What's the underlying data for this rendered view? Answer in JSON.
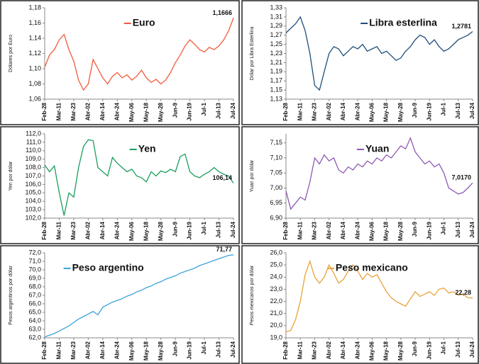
{
  "chart_data": [
    {
      "type": "line",
      "ylabel": "Dólares por Euro",
      "categories": [
        "Feb-28",
        null,
        null,
        "Mar-11",
        null,
        null,
        "Mar-23",
        null,
        null,
        "Abr-02",
        null,
        null,
        "Abr-14",
        null,
        null,
        "Abr-24",
        null,
        null,
        "May-06",
        null,
        null,
        "May-18",
        null,
        null,
        "May-28",
        null,
        null,
        "Jun-9",
        null,
        null,
        "Jun-19",
        null,
        null,
        "Jul-1",
        null,
        null,
        "Jul-13",
        null,
        null,
        "Jul-24"
      ],
      "series": [
        {
          "name": "Euro",
          "color": "#f05a3c",
          "values": [
            1.102,
            1.118,
            1.125,
            1.138,
            1.145,
            1.125,
            1.11,
            1.085,
            1.072,
            1.08,
            1.112,
            1.1,
            1.088,
            1.08,
            1.09,
            1.095,
            1.088,
            1.092,
            1.085,
            1.09,
            1.098,
            1.088,
            1.082,
            1.086,
            1.08,
            1.085,
            1.095,
            1.108,
            1.118,
            1.13,
            1.138,
            1.132,
            1.125,
            1.122,
            1.128,
            1.125,
            1.13,
            1.138,
            1.15,
            1.1666
          ],
          "value_labels": [
            null,
            null,
            null,
            null,
            null,
            null,
            null,
            null,
            null,
            null,
            null,
            null,
            null,
            null,
            null,
            null,
            null,
            null,
            null,
            null,
            null,
            null,
            null,
            null,
            null,
            null,
            null,
            null,
            null,
            null,
            null,
            null,
            null,
            null,
            null,
            null,
            null,
            null,
            null,
            "1,1666"
          ]
        }
      ],
      "ylim": [
        1.06,
        1.18
      ],
      "yticks": [
        {
          "value": 1.06,
          "label": "1,06"
        },
        {
          "value": 1.08,
          "label": "1,08"
        },
        {
          "value": 1.1,
          "label": "1,10"
        },
        {
          "value": 1.12,
          "label": "1,12"
        },
        {
          "value": 1.14,
          "label": "1,14"
        },
        {
          "value": 1.16,
          "label": "1,16"
        },
        {
          "value": 1.18,
          "label": "1,18"
        }
      ]
    },
    {
      "type": "line",
      "ylabel": "Dólar por Libra Esterlina",
      "categories": [
        "Feb-28",
        null,
        null,
        "Mar-11",
        null,
        null,
        "Mar-23",
        null,
        null,
        "Abr-02",
        null,
        null,
        "Abr-14",
        null,
        null,
        "Abr-24",
        null,
        null,
        "May-06",
        null,
        null,
        "May-18",
        null,
        null,
        "May-28",
        null,
        null,
        "Jun-9",
        null,
        null,
        "Jun-19",
        null,
        null,
        "Jul-1",
        null,
        null,
        "Jul-13",
        null,
        null,
        "Jul-24"
      ],
      "series": [
        {
          "name": "Libra esterlina",
          "color": "#1f4e79",
          "values": [
            1.275,
            1.285,
            1.295,
            1.31,
            1.28,
            1.23,
            1.16,
            1.15,
            1.19,
            1.23,
            1.245,
            1.24,
            1.225,
            1.235,
            1.245,
            1.24,
            1.25,
            1.235,
            1.24,
            1.245,
            1.23,
            1.235,
            1.225,
            1.215,
            1.22,
            1.235,
            1.245,
            1.26,
            1.27,
            1.265,
            1.25,
            1.26,
            1.245,
            1.235,
            1.24,
            1.25,
            1.26,
            1.265,
            1.27,
            1.2781
          ],
          "value_labels": [
            null,
            null,
            null,
            null,
            null,
            null,
            null,
            null,
            null,
            null,
            null,
            null,
            null,
            null,
            null,
            null,
            null,
            null,
            null,
            null,
            null,
            null,
            null,
            null,
            null,
            null,
            null,
            null,
            null,
            null,
            null,
            null,
            null,
            null,
            null,
            null,
            null,
            null,
            null,
            "1,2781"
          ]
        }
      ],
      "ylim": [
        1.13,
        1.33
      ],
      "yticks": [
        {
          "value": 1.13,
          "label": "1,13"
        },
        {
          "value": 1.15,
          "label": "1,15"
        },
        {
          "value": 1.17,
          "label": "1,17"
        },
        {
          "value": 1.19,
          "label": "1,19"
        },
        {
          "value": 1.21,
          "label": "1,21"
        },
        {
          "value": 1.23,
          "label": "1,23"
        },
        {
          "value": 1.25,
          "label": "1,25"
        },
        {
          "value": 1.27,
          "label": "1,27"
        },
        {
          "value": 1.29,
          "label": "1,29"
        },
        {
          "value": 1.31,
          "label": "1,31"
        },
        {
          "value": 1.33,
          "label": "1,33"
        }
      ]
    },
    {
      "type": "line",
      "ylabel": "Yen por dólar",
      "categories": [
        "Feb-28",
        null,
        null,
        "Mar-11",
        null,
        null,
        "Mar-23",
        null,
        null,
        "Abr-02",
        null,
        null,
        "Abr-14",
        null,
        null,
        "Abr-24",
        null,
        null,
        "May-06",
        null,
        null,
        "May-18",
        null,
        null,
        "May-28",
        null,
        null,
        "Jun-9",
        null,
        null,
        "Jun-19",
        null,
        null,
        "Jul-1",
        null,
        null,
        "Jul-13",
        null,
        null,
        "Jul-24"
      ],
      "series": [
        {
          "name": "Yen",
          "color": "#1a9e5c",
          "values": [
            108.3,
            107.5,
            108.2,
            105,
            102.3,
            105,
            104.5,
            108,
            110.5,
            111.3,
            111.2,
            108,
            107.5,
            107,
            109.2,
            108.5,
            108,
            107.5,
            107.8,
            107,
            106.8,
            106.3,
            107.5,
            107,
            107.6,
            107.4,
            107.8,
            107.5,
            109.3,
            109.6,
            107.5,
            107,
            106.8,
            107.2,
            107.5,
            108,
            107.5,
            107.2,
            107,
            106.14
          ],
          "value_labels": [
            null,
            null,
            null,
            null,
            null,
            null,
            null,
            null,
            null,
            null,
            null,
            null,
            null,
            null,
            null,
            null,
            null,
            null,
            null,
            null,
            null,
            null,
            null,
            null,
            null,
            null,
            null,
            null,
            null,
            null,
            null,
            null,
            null,
            null,
            null,
            null,
            null,
            null,
            null,
            "106,14"
          ]
        }
      ],
      "ylim": [
        102,
        112
      ],
      "yticks": [
        {
          "value": 102,
          "label": "102,0"
        },
        {
          "value": 103,
          "label": "103,0"
        },
        {
          "value": 104,
          "label": "104,0"
        },
        {
          "value": 105,
          "label": "105,0"
        },
        {
          "value": 106,
          "label": "106,0"
        },
        {
          "value": 107,
          "label": "107,0"
        },
        {
          "value": 108,
          "label": "108,0"
        },
        {
          "value": 109,
          "label": "109,0"
        },
        {
          "value": 110,
          "label": "110,0"
        },
        {
          "value": 111,
          "label": "111,0"
        },
        {
          "value": 112,
          "label": "112,0"
        }
      ]
    },
    {
      "type": "line",
      "ylabel": "Yuan por dólar",
      "categories": [
        "Feb-28",
        null,
        null,
        "Mar-11",
        null,
        null,
        "Mar-23",
        null,
        null,
        "Abr-02",
        null,
        null,
        "Abr-14",
        null,
        null,
        "Abr-24",
        null,
        null,
        "May-06",
        null,
        null,
        "May-18",
        null,
        null,
        "May-28",
        null,
        null,
        "Jun-9",
        null,
        null,
        "Jun-19",
        null,
        null,
        "Jul-1",
        null,
        null,
        "Jul-13",
        null,
        null,
        "Jul-24"
      ],
      "series": [
        {
          "name": "Yuan",
          "color": "#8e5ab5",
          "values": [
            6.99,
            6.93,
            6.95,
            6.97,
            6.96,
            7.02,
            7.1,
            7.08,
            7.11,
            7.09,
            7.1,
            7.06,
            7.05,
            7.07,
            7.06,
            7.08,
            7.07,
            7.09,
            7.08,
            7.1,
            7.09,
            7.11,
            7.1,
            7.12,
            7.14,
            7.13,
            7.166,
            7.12,
            7.1,
            7.08,
            7.09,
            7.07,
            7.08,
            7.05,
            7.0,
            6.99,
            6.98,
            6.985,
            7.0,
            7.017
          ],
          "value_labels": [
            null,
            null,
            null,
            null,
            null,
            null,
            null,
            null,
            null,
            null,
            null,
            null,
            null,
            null,
            null,
            null,
            null,
            null,
            null,
            null,
            null,
            null,
            null,
            null,
            null,
            null,
            null,
            null,
            null,
            null,
            null,
            null,
            null,
            null,
            null,
            null,
            null,
            null,
            null,
            "7,0170"
          ]
        }
      ],
      "ylim": [
        6.9,
        7.18
      ],
      "yticks": [
        {
          "value": 6.9,
          "label": "6,90"
        },
        {
          "value": 6.95,
          "label": "6,95"
        },
        {
          "value": 7.0,
          "label": "7,00"
        },
        {
          "value": 7.05,
          "label": "7,05"
        },
        {
          "value": 7.1,
          "label": "7,10"
        },
        {
          "value": 7.15,
          "label": "7,15"
        }
      ]
    },
    {
      "type": "line",
      "ylabel": "Pesos argentinos por dólar",
      "categories": [
        "Feb-28",
        null,
        null,
        "Mar-11",
        null,
        null,
        "Mar-23",
        null,
        null,
        "Abr-02",
        null,
        null,
        "Abr-14",
        null,
        null,
        "Abr-24",
        null,
        null,
        "May-06",
        null,
        null,
        "May-18",
        null,
        null,
        "May-28",
        null,
        null,
        "Jun-9",
        null,
        null,
        "Jun-19",
        null,
        null,
        "Jul-1",
        null,
        null,
        "Jul-13",
        null,
        null,
        "Jul-24"
      ],
      "series": [
        {
          "name": "Peso argentino",
          "color": "#3ba3d9",
          "values": [
            62.1,
            62.3,
            62.5,
            62.8,
            63.1,
            63.4,
            63.8,
            64.2,
            64.5,
            64.8,
            65.1,
            64.7,
            65.6,
            65.9,
            66.2,
            66.4,
            66.6,
            66.9,
            67.1,
            67.4,
            67.6,
            67.9,
            68.1,
            68.4,
            68.6,
            68.9,
            69.1,
            69.3,
            69.6,
            69.8,
            70.0,
            70.2,
            70.5,
            70.7,
            70.9,
            71.1,
            71.3,
            71.5,
            71.7,
            71.77
          ],
          "value_labels": [
            null,
            null,
            null,
            null,
            null,
            null,
            null,
            null,
            null,
            null,
            null,
            null,
            null,
            null,
            null,
            null,
            null,
            null,
            null,
            null,
            null,
            null,
            null,
            null,
            null,
            null,
            null,
            null,
            null,
            null,
            null,
            null,
            null,
            null,
            null,
            null,
            null,
            null,
            null,
            "71,77"
          ]
        }
      ],
      "ylim": [
        62,
        72
      ],
      "yticks": [
        {
          "value": 62,
          "label": "62,0"
        },
        {
          "value": 63,
          "label": "63,0"
        },
        {
          "value": 64,
          "label": "64,0"
        },
        {
          "value": 65,
          "label": "65,0"
        },
        {
          "value": 66,
          "label": "66,0"
        },
        {
          "value": 67,
          "label": "67,0"
        },
        {
          "value": 68,
          "label": "68,0"
        },
        {
          "value": 69,
          "label": "69,0"
        },
        {
          "value": 70,
          "label": "70,0"
        },
        {
          "value": 71,
          "label": "71,0"
        },
        {
          "value": 72,
          "label": "72,0"
        }
      ]
    },
    {
      "type": "line",
      "ylabel": "Pesos mexicanos por dólar",
      "categories": [
        "Feb-28",
        null,
        null,
        "Mar-11",
        null,
        null,
        "Mar-23",
        null,
        null,
        "Abr-02",
        null,
        null,
        "Abr-14",
        null,
        null,
        "Abr-24",
        null,
        null,
        "May-06",
        null,
        null,
        "May-18",
        null,
        null,
        "May-28",
        null,
        null,
        "Jun-9",
        null,
        null,
        "Jun-19",
        null,
        null,
        "Jul-1",
        null,
        null,
        "Jul-13",
        null,
        null,
        "Jul-24"
      ],
      "series": [
        {
          "name": "Peso mexicano",
          "color": "#e8a33a",
          "values": [
            19.5,
            19.6,
            20.5,
            22,
            24.2,
            25.3,
            24,
            23.5,
            24,
            25,
            24.3,
            23.5,
            23.8,
            24.5,
            25,
            24.5,
            23.8,
            24.3,
            24,
            24.2,
            23.5,
            22.8,
            22.3,
            22,
            21.8,
            21.6,
            22.2,
            22.8,
            22.4,
            22.6,
            22.8,
            22.5,
            23,
            23.1,
            22.7,
            22.8,
            22.5,
            22.6,
            22.3,
            22.28
          ],
          "value_labels": [
            null,
            null,
            null,
            null,
            null,
            null,
            null,
            null,
            null,
            null,
            null,
            null,
            null,
            null,
            null,
            null,
            null,
            null,
            null,
            null,
            null,
            null,
            null,
            null,
            null,
            null,
            null,
            null,
            null,
            null,
            null,
            null,
            null,
            null,
            null,
            null,
            null,
            null,
            null,
            "22,28"
          ]
        }
      ],
      "ylim": [
        19,
        26
      ],
      "yticks": [
        {
          "value": 19,
          "label": "19,0"
        },
        {
          "value": 20,
          "label": "20,0"
        },
        {
          "value": 21,
          "label": "21,0"
        },
        {
          "value": 22,
          "label": "22,0"
        },
        {
          "value": 23,
          "label": "23,0"
        },
        {
          "value": 24,
          "label": "24,0"
        },
        {
          "value": 25,
          "label": "25,0"
        },
        {
          "value": 26,
          "label": "26,0"
        }
      ]
    }
  ]
}
